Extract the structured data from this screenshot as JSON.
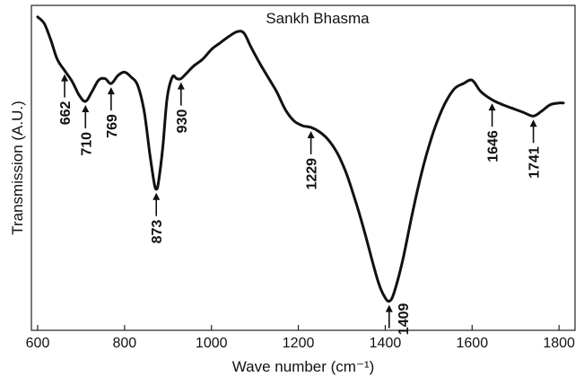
{
  "chart_data": {
    "type": "line",
    "title": "Sankh Bhasma",
    "xlabel": "Wave number (cm⁻¹)",
    "ylabel": "Transmission (A.U.)",
    "xlim": [
      600,
      1810
    ],
    "ylim": [
      0,
      100
    ],
    "x_ticks": [
      600,
      800,
      1000,
      1200,
      1400,
      1600,
      1800
    ],
    "grid": false,
    "series": [
      {
        "x": [
          600,
          615,
          630,
          645,
          662,
          680,
          695,
          710,
          725,
          740,
          755,
          769,
          785,
          800,
          815,
          830,
          845,
          858,
          868,
          873,
          878,
          888,
          898,
          910,
          920,
          930,
          945,
          960,
          980,
          1000,
          1020,
          1040,
          1060,
          1075,
          1090,
          1110,
          1130,
          1150,
          1170,
          1190,
          1210,
          1229,
          1250,
          1270,
          1290,
          1310,
          1330,
          1350,
          1370,
          1385,
          1398,
          1409,
          1420,
          1440,
          1460,
          1480,
          1500,
          1520,
          1540,
          1560,
          1580,
          1600,
          1620,
          1646,
          1670,
          1700,
          1720,
          1741,
          1760,
          1780,
          1800,
          1810
        ],
        "y": [
          97,
          95,
          90,
          84,
          80.5,
          77,
          73,
          71,
          74,
          77.5,
          78,
          76.5,
          79,
          80,
          78.5,
          76,
          68,
          55,
          46,
          44,
          46,
          57,
          72,
          78.5,
          78,
          78,
          80,
          82,
          84,
          87,
          89,
          91,
          92.5,
          92,
          88,
          83,
          78.5,
          74,
          68.5,
          65,
          63.5,
          63,
          61.5,
          59,
          55,
          49,
          41,
          32,
          22,
          15,
          11,
          9.5,
          12,
          22,
          35,
          47,
          57,
          65,
          71,
          75,
          76.5,
          77.5,
          74,
          71.5,
          70,
          68.5,
          67.5,
          66.5,
          68,
          70,
          70.5,
          70.5
        ]
      }
    ],
    "peaks": [
      {
        "x": 662,
        "label": "662",
        "dir": "down"
      },
      {
        "x": 710,
        "label": "710",
        "dir": "down"
      },
      {
        "x": 769,
        "label": "769",
        "dir": "down"
      },
      {
        "x": 873,
        "label": "873",
        "dir": "up"
      },
      {
        "x": 930,
        "label": "930",
        "dir": "down"
      },
      {
        "x": 1229,
        "label": "1229",
        "dir": "down"
      },
      {
        "x": 1409,
        "label": "1409",
        "dir": "up"
      },
      {
        "x": 1646,
        "label": "1646",
        "dir": "down"
      },
      {
        "x": 1741,
        "label": "1741",
        "dir": "down"
      }
    ]
  }
}
